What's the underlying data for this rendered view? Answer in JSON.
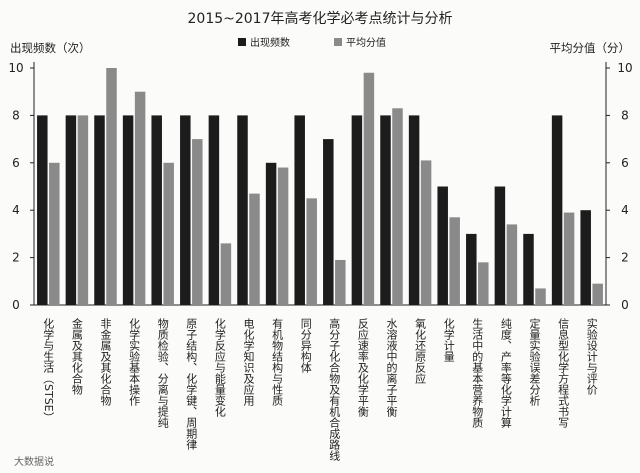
{
  "chart_data": {
    "type": "bar",
    "title": "2015~2017年高考化学必考点统计与分析",
    "ylabel_left": "出现频数（次）",
    "ylabel_right": "平均分值（分）",
    "ylim_left": [
      0,
      10
    ],
    "ylim_right": [
      0,
      10
    ],
    "yticks_left": [
      "0",
      "2",
      "4",
      "6",
      "8",
      "10"
    ],
    "yticks_right": [
      "0",
      "2",
      "4",
      "6",
      "8",
      "10"
    ],
    "legend_position": "top-center",
    "grid": false,
    "categories": [
      "化学与生活（STSE）",
      "金属及其化合物",
      "非金属及其化合物",
      "化学实验基本操作",
      "物质检验、分离与提纯",
      "原子结构、化学键、周期律",
      "化学反应与能量变化",
      "电化学知识及应用",
      "有机物结构与性质",
      "同分异构体",
      "高分子化合物及有机合成路线",
      "反应速率及化学平衡",
      "水溶液中的离子平衡",
      "氧化还原反应",
      "化学计量",
      "生活中的基本营养物质",
      "纯度、产率等化学计算",
      "定量实验误差分析",
      "信息型化学方程式书写",
      "实验设计与评价"
    ],
    "series": [
      {
        "name": "出现频数",
        "color": "#1c1c1c",
        "values": [
          8,
          8,
          8,
          8,
          8,
          8,
          8,
          8,
          6,
          8,
          7,
          8,
          8,
          8,
          5,
          3,
          5,
          3,
          8,
          4
        ]
      },
      {
        "name": "平均分值",
        "color": "#8a8a8a",
        "values": [
          6,
          8,
          10,
          9,
          6,
          7,
          2.6,
          4.7,
          5.8,
          4.5,
          1.9,
          9.8,
          8.3,
          6.1,
          3.7,
          1.8,
          3.4,
          0.7,
          3.9,
          0.9
        ]
      }
    ]
  },
  "footer_mark": "大数据说"
}
